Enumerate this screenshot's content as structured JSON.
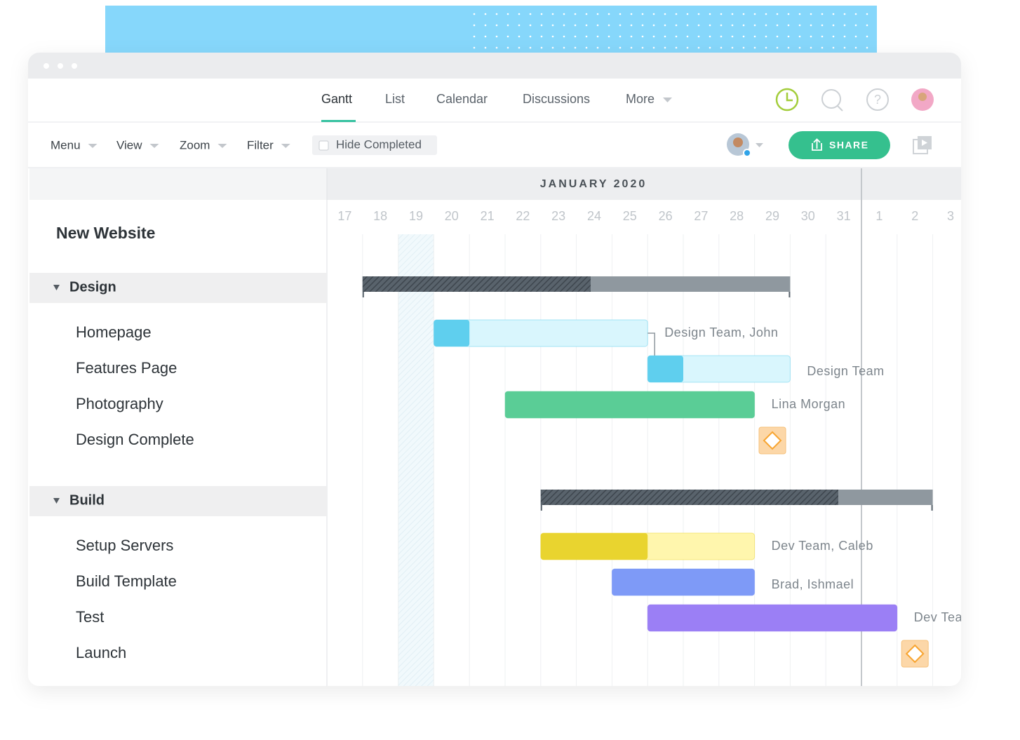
{
  "nav": {
    "tabs": [
      "Gantt",
      "List",
      "Calendar",
      "Discussions",
      "More"
    ]
  },
  "toolbar": {
    "menus": [
      "Menu",
      "View",
      "Zoom",
      "Filter"
    ],
    "hide_completed": "Hide Completed",
    "share": "SHARE"
  },
  "project": "New Website",
  "timeline": {
    "month": "JANUARY 2020",
    "days": [
      17,
      18,
      19,
      20,
      21,
      22,
      23,
      24,
      25,
      26,
      27,
      28,
      29,
      30,
      31,
      1,
      2,
      3
    ],
    "weekend": 2,
    "today": 15
  },
  "groups": [
    {
      "name": "Design",
      "start": 1,
      "end": 13,
      "done": 7.4,
      "tasks": [
        {
          "name": "Homepage",
          "start": 3,
          "end": 9,
          "done": 4,
          "assignee": "Design Team, John",
          "color": "#5fcfee",
          "light": "#d9f6fd"
        },
        {
          "name": "Features Page",
          "start": 9,
          "end": 13,
          "done": 10,
          "assignee": "Design Team",
          "color": "#5fcfee",
          "light": "#d9f6fd"
        },
        {
          "name": "Photography",
          "start": 5,
          "end": 12,
          "done": 12,
          "assignee": "Lina Morgan",
          "color": "#5acd96",
          "light": "#5acd96"
        },
        {
          "name": "Design Complete",
          "milestone": true,
          "start": 12
        }
      ]
    },
    {
      "name": "Build",
      "start": 6,
      "end": 17,
      "done": 14.35,
      "tasks": [
        {
          "name": "Setup Servers",
          "start": 6,
          "end": 12,
          "done": 9,
          "assignee": "Dev Team, Caleb",
          "color": "#e9d42f",
          "light": "#fff6ad"
        },
        {
          "name": "Build Template",
          "start": 8,
          "end": 12,
          "done": 12,
          "assignee": "Brad, Ishmael",
          "color": "#7e9af7",
          "light": "#7e9af7"
        },
        {
          "name": "Test",
          "start": 9,
          "end": 16,
          "done": 16,
          "assignee": "Dev Team",
          "color": "#9b7ff5",
          "light": "#9b7ff5"
        },
        {
          "name": "Launch",
          "milestone": true,
          "start": 16
        }
      ]
    }
  ]
}
